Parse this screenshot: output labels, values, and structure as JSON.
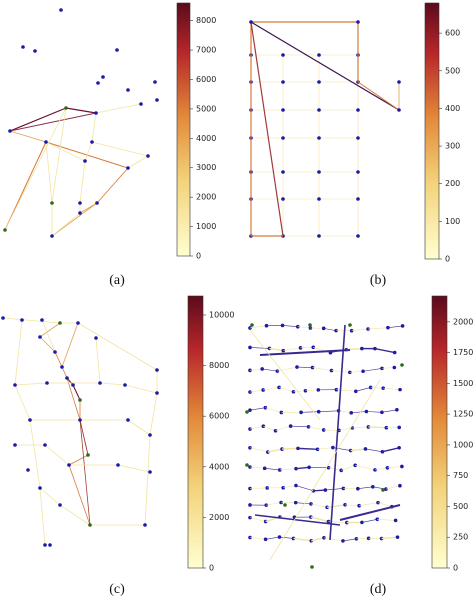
{
  "panels": [
    {
      "label": "(a)",
      "colorbar": {
        "lim": [
          0,
          8600
        ],
        "ticks": [
          0,
          1000,
          2000,
          3000,
          4000,
          5000,
          6000,
          7000,
          8000
        ]
      }
    },
    {
      "label": "(b)",
      "colorbar": {
        "lim": [
          0,
          680
        ],
        "ticks": [
          0,
          100,
          200,
          300,
          400,
          500,
          600
        ]
      }
    },
    {
      "label": "(c)",
      "colorbar": {
        "lim": [
          0,
          10750
        ],
        "ticks": [
          0,
          2000,
          4000,
          6000,
          8000,
          10000
        ]
      }
    },
    {
      "label": "(d)",
      "colorbar": {
        "lim": [
          0,
          2210
        ],
        "ticks": [
          0,
          250,
          500,
          750,
          1000,
          1250,
          1500,
          1750,
          2000
        ]
      }
    }
  ]
}
